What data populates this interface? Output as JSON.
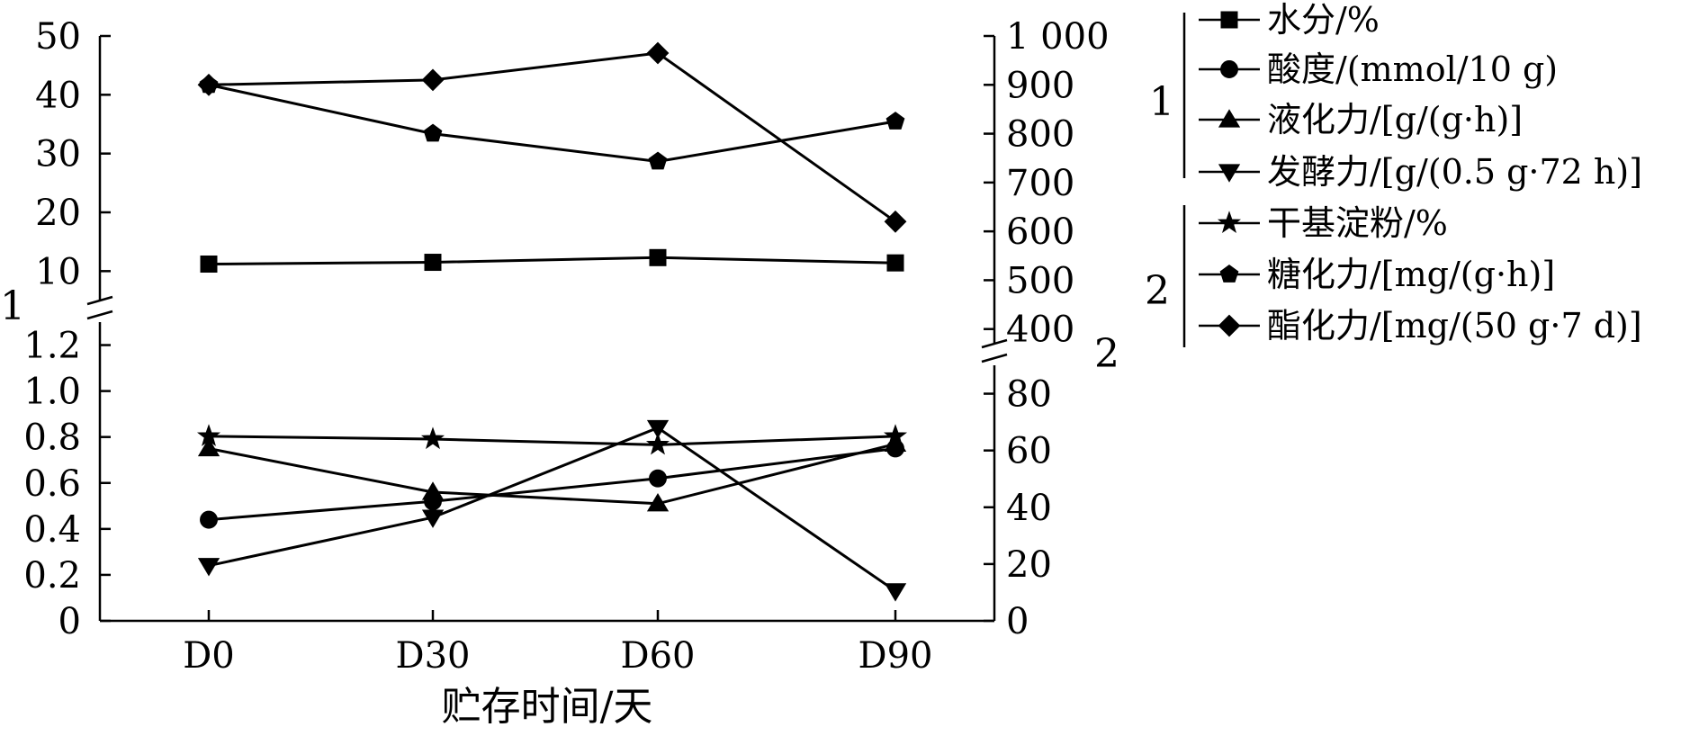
{
  "chart_data": {
    "type": "line",
    "categories": [
      "D0",
      "D30",
      "D60",
      "D90"
    ],
    "xlabel": "贮存时间/天",
    "left_axis": {
      "lower": {
        "ylim": [
          0,
          1.3
        ],
        "ticks": [
          "0",
          "0.2",
          "0.4",
          "0.6",
          "0.8",
          "1.0",
          "1.2"
        ]
      },
      "upper": {
        "ylim": [
          5,
          50
        ],
        "ticks": [
          "10",
          "20",
          "30",
          "40",
          "50"
        ]
      },
      "break_label": "1"
    },
    "right_axis": {
      "lower": {
        "ylim": [
          0,
          90
        ],
        "ticks": [
          "0",
          "20",
          "40",
          "60",
          "80"
        ]
      },
      "upper": {
        "ylim": [
          370,
          1000
        ],
        "ticks": [
          "400",
          "500",
          "600",
          "700",
          "800",
          "900",
          "1 000"
        ]
      },
      "break_label": "2"
    },
    "legend_groups": [
      {
        "label": "1",
        "entries": [
          "水分/%",
          "酸度/(mmol/10 g)",
          "液化力/[g/(g·h)]",
          "发酵力/[g/(0.5 g·72 h)]"
        ]
      },
      {
        "label": "2",
        "entries": [
          "干基淀粉/%",
          "糖化力/[mg/(g·h)]",
          "酯化力/[mg/(50 g·7 d)]"
        ]
      }
    ],
    "series": [
      {
        "name": "水分/%",
        "marker": "square",
        "axis": "left",
        "values": [
          11.2,
          11.5,
          12.3,
          11.4
        ]
      },
      {
        "name": "酸度/(mmol/10 g)",
        "marker": "circle",
        "axis": "left",
        "values": [
          0.44,
          0.52,
          0.62,
          0.75
        ]
      },
      {
        "name": "液化力/[g/(g·h)]",
        "marker": "triangle-up",
        "axis": "left",
        "values": [
          0.75,
          0.56,
          0.51,
          0.77
        ]
      },
      {
        "name": "发酵力/[g/(0.5 g·72 h)]",
        "marker": "triangle-down",
        "axis": "left",
        "values": [
          0.24,
          0.45,
          0.84,
          0.13
        ]
      },
      {
        "name": "干基淀粉/%",
        "marker": "star",
        "axis": "right",
        "values": [
          65,
          64,
          62,
          65
        ]
      },
      {
        "name": "糖化力/[mg/(g·h)]",
        "marker": "pentagon",
        "axis": "right",
        "values": [
          900,
          800,
          743,
          825
        ]
      },
      {
        "name": "酯化力/[mg/(50 g·7 d)]",
        "marker": "diamond",
        "axis": "right",
        "values": [
          900,
          910,
          965,
          620
        ]
      }
    ]
  }
}
